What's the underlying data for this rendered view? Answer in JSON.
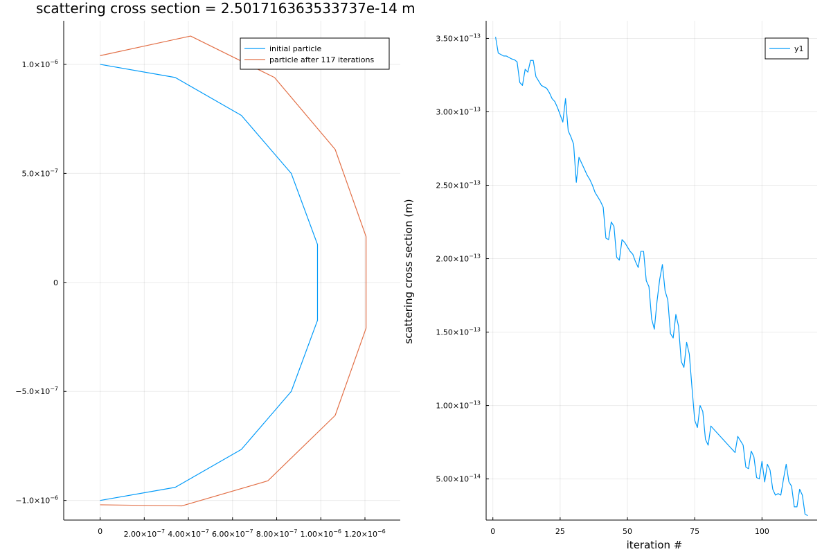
{
  "colors": {
    "series1": "#009AF9",
    "series2": "#E26F46"
  },
  "chart_data": [
    {
      "type": "line",
      "title": "scattering cross section = 2.501716363533737e-14 m",
      "xlabel": "",
      "ylabel": "",
      "xlim": [
        -1.65e-07,
        1.36e-06
      ],
      "ylim": [
        -1.09e-06,
        1.2e-06
      ],
      "xticks": [
        0,
        2e-07,
        4e-07,
        6e-07,
        8e-07,
        1e-06,
        1.2e-06
      ],
      "xtick_labels": [
        {
          "base": "0",
          "exp": ""
        },
        {
          "base": "2.00×10",
          "exp": "−7"
        },
        {
          "base": "4.00×10",
          "exp": "−7"
        },
        {
          "base": "6.00×10",
          "exp": "−7"
        },
        {
          "base": "8.00×10",
          "exp": "−7"
        },
        {
          "base": "1.00×10",
          "exp": "−6"
        },
        {
          "base": "1.20×10",
          "exp": "−6"
        }
      ],
      "yticks": [
        -1e-06,
        -5e-07,
        0,
        5e-07,
        1e-06
      ],
      "ytick_labels": [
        {
          "base": "−1.0×10",
          "exp": "−6"
        },
        {
          "base": "−5.0×10",
          "exp": "−7"
        },
        {
          "base": "0",
          "exp": ""
        },
        {
          "base": "5.0×10",
          "exp": "−7"
        },
        {
          "base": "1.0×10",
          "exp": "−6"
        }
      ],
      "grid": true,
      "legend": "top-right",
      "series": [
        {
          "name": "initial particle",
          "color": "#009AF9",
          "x": [
            0,
            3.4e-07,
            6.4e-07,
            8.66e-07,
            9.85e-07,
            9.85e-07,
            8.66e-07,
            6.4e-07,
            3.4e-07,
            0
          ],
          "y": [
            1e-06,
            9.4e-07,
            7.66e-07,
            5e-07,
            1.74e-07,
            -1.74e-07,
            -5e-07,
            -7.66e-07,
            -9.4e-07,
            -1e-06
          ]
        },
        {
          "name": "particle after 117 iterations",
          "color": "#E26F46",
          "x": [
            0,
            4.1e-07,
            7.9e-07,
            1.065e-06,
            1.205e-06,
            1.205e-06,
            1.065e-06,
            7.6e-07,
            3.7e-07,
            0
          ],
          "y": [
            1.04e-06,
            1.13e-06,
            9.4e-07,
            6.1e-07,
            2.1e-07,
            -2.1e-07,
            -6.1e-07,
            -9.1e-07,
            -1.025e-06,
            -1.02e-06
          ]
        }
      ]
    },
    {
      "type": "line",
      "title": "",
      "xlabel": "iteration #",
      "ylabel": "scattering cross section (m)",
      "xlim": [
        -2.5,
        120.5
      ],
      "ylim": [
        2.2e-14,
        3.62e-13
      ],
      "xticks": [
        0,
        25,
        50,
        75,
        100
      ],
      "xtick_labels": [
        {
          "base": "0",
          "exp": ""
        },
        {
          "base": "25",
          "exp": ""
        },
        {
          "base": "50",
          "exp": ""
        },
        {
          "base": "75",
          "exp": ""
        },
        {
          "base": "100",
          "exp": ""
        }
      ],
      "yticks": [
        5e-14,
        1e-13,
        1.5e-13,
        2e-13,
        2.5e-13,
        3e-13,
        3.5e-13
      ],
      "ytick_labels": [
        {
          "base": "5.00×10",
          "exp": "−14"
        },
        {
          "base": "1.00×10",
          "exp": "−13"
        },
        {
          "base": "1.50×10",
          "exp": "−13"
        },
        {
          "base": "2.00×10",
          "exp": "−13"
        },
        {
          "base": "2.50×10",
          "exp": "−13"
        },
        {
          "base": "3.00×10",
          "exp": "−13"
        },
        {
          "base": "3.50×10",
          "exp": "−13"
        }
      ],
      "grid": true,
      "legend": "top-right",
      "series": [
        {
          "name": "y1",
          "color": "#009AF9",
          "x": [
            1,
            2,
            3,
            4,
            5,
            6,
            7,
            8,
            9,
            10,
            11,
            12,
            13,
            14,
            15,
            16,
            17,
            18,
            19,
            20,
            21,
            22,
            23,
            24,
            25,
            26,
            27,
            28,
            29,
            30,
            31,
            32,
            33,
            34,
            35,
            36,
            37,
            38,
            39,
            40,
            41,
            42,
            43,
            44,
            45,
            46,
            47,
            48,
            49,
            50,
            51,
            52,
            53,
            54,
            55,
            56,
            57,
            58,
            59,
            60,
            61,
            62,
            63,
            64,
            65,
            66,
            67,
            68,
            69,
            70,
            71,
            72,
            73,
            74,
            75,
            76,
            77,
            78,
            79,
            80,
            81,
            82,
            83,
            84,
            85,
            86,
            87,
            88,
            89,
            90,
            91,
            92,
            93,
            94,
            95,
            96,
            97,
            98,
            99,
            100,
            101,
            102,
            103,
            104,
            105,
            106,
            107,
            108,
            109,
            110,
            111,
            112,
            113,
            114,
            115,
            116,
            117
          ],
          "y": [
            3.51e-13,
            3.4e-13,
            3.39e-13,
            3.38e-13,
            3.38e-13,
            3.37e-13,
            3.36e-13,
            3.355e-13,
            3.34e-13,
            3.2e-13,
            3.18e-13,
            3.29e-13,
            3.27e-13,
            3.35e-13,
            3.35e-13,
            3.24e-13,
            3.21e-13,
            3.18e-13,
            3.17e-13,
            3.16e-13,
            3.13e-13,
            3.09e-13,
            3.07e-13,
            3.03e-13,
            2.98e-13,
            2.93e-13,
            3.09e-13,
            2.87e-13,
            2.83e-13,
            2.78e-13,
            2.52e-13,
            2.69e-13,
            2.65e-13,
            2.61e-13,
            2.57e-13,
            2.54e-13,
            2.5e-13,
            2.45e-13,
            2.42e-13,
            2.39e-13,
            2.35e-13,
            2.14e-13,
            2.13e-13,
            2.25e-13,
            2.22e-13,
            2.01e-13,
            1.99e-13,
            2.13e-13,
            2.11e-13,
            2.08e-13,
            2.05e-13,
            2.03e-13,
            1.98e-13,
            1.94e-13,
            2.05e-13,
            2.05e-13,
            1.85e-13,
            1.81e-13,
            1.59e-13,
            1.52e-13,
            1.71e-13,
            1.86e-13,
            1.96e-13,
            1.78e-13,
            1.72e-13,
            1.49e-13,
            1.46e-13,
            1.62e-13,
            1.54e-13,
            1.3e-13,
            1.26e-13,
            1.43e-13,
            1.35e-13,
            1.12e-13,
            9e-14,
            8.5e-14,
            1e-13,
            9.6e-14,
            7.7e-14,
            7.3e-14,
            8.6e-14,
            8.4e-14,
            8.2e-14,
            8e-14,
            7.8e-14,
            7.6e-14,
            7.4e-14,
            7.2e-14,
            7e-14,
            6.8e-14,
            7.9e-14,
            7.6e-14,
            7.3e-14,
            5.8e-14,
            5.7e-14,
            6.9e-14,
            6.5e-14,
            5.1e-14,
            5e-14,
            6.2e-14,
            4.8e-14,
            6e-14,
            5.6e-14,
            4.3e-14,
            3.9e-14,
            4e-14,
            3.9e-14,
            5e-14,
            6e-14,
            4.8e-14,
            4.5e-14,
            3.1e-14,
            3.1e-14,
            4.3e-14,
            3.9e-14,
            2.6e-14,
            2.5e-14
          ]
        }
      ]
    }
  ]
}
